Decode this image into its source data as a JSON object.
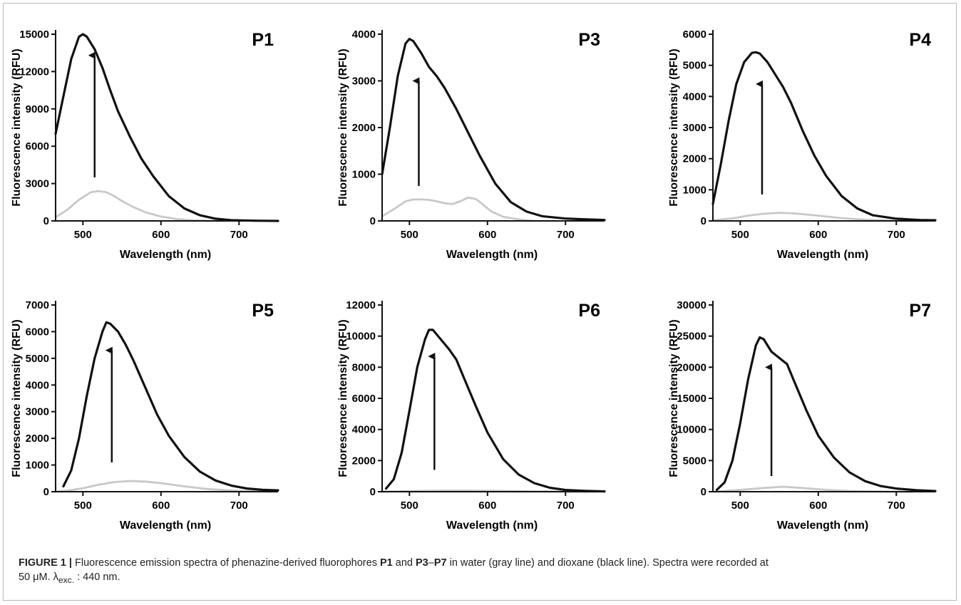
{
  "chart_data": [
    {
      "type": "line",
      "title": "P1",
      "xlabel": "Wavelength (nm)",
      "ylabel": "Fluorescence intensity (RFU)",
      "xlim": [
        465,
        750
      ],
      "ylim": [
        0,
        15000
      ],
      "xticks": [
        500,
        600,
        700
      ],
      "yticks": [
        0,
        3000,
        6000,
        9000,
        12000,
        15000
      ],
      "series": [
        {
          "color": "#111111",
          "x": [
            465,
            475,
            485,
            495,
            500,
            505,
            515,
            525,
            535,
            545,
            560,
            575,
            590,
            610,
            630,
            650,
            670,
            690,
            720,
            750
          ],
          "y": [
            7000,
            10000,
            13000,
            14800,
            15000,
            14800,
            13800,
            12300,
            10500,
            8800,
            6800,
            5000,
            3600,
            2000,
            1000,
            450,
            180,
            60,
            20,
            0
          ]
        },
        {
          "color": "#c8c8c8",
          "x": [
            465,
            480,
            495,
            510,
            520,
            530,
            540,
            550,
            565,
            580,
            600,
            620,
            640,
            660,
            680
          ],
          "y": [
            300,
            900,
            1700,
            2300,
            2400,
            2300,
            2000,
            1600,
            1100,
            700,
            350,
            150,
            60,
            20,
            0
          ]
        }
      ],
      "arrow": {
        "x": 515,
        "y_from": 3500,
        "y_to": 13300
      }
    },
    {
      "type": "line",
      "title": "P3",
      "xlabel": "Wavelength (nm)",
      "ylabel": "Fluorescence intensity (RFU)",
      "xlim": [
        465,
        750
      ],
      "ylim": [
        0,
        4000
      ],
      "xticks": [
        500,
        600,
        700
      ],
      "yticks": [
        0,
        1000,
        2000,
        3000,
        4000
      ],
      "series": [
        {
          "color": "#111111",
          "x": [
            465,
            475,
            485,
            495,
            500,
            505,
            515,
            525,
            535,
            545,
            560,
            575,
            590,
            610,
            630,
            650,
            670,
            700,
            730,
            750
          ],
          "y": [
            1000,
            2000,
            3100,
            3800,
            3900,
            3850,
            3600,
            3300,
            3100,
            2850,
            2400,
            1900,
            1400,
            800,
            400,
            200,
            100,
            50,
            30,
            20
          ]
        },
        {
          "color": "#c8c8c8",
          "x": [
            465,
            480,
            495,
            505,
            515,
            525,
            535,
            545,
            555,
            565,
            575,
            585,
            595,
            605,
            620,
            640,
            660
          ],
          "y": [
            100,
            250,
            420,
            460,
            460,
            450,
            420,
            380,
            360,
            420,
            500,
            470,
            340,
            200,
            90,
            30,
            0
          ]
        }
      ],
      "arrow": {
        "x": 512,
        "y_from": 750,
        "y_to": 3000
      }
    },
    {
      "type": "line",
      "title": "P4",
      "xlabel": "Wavelength (nm)",
      "ylabel": "Fluorescence intensity (RFU)",
      "xlim": [
        465,
        750
      ],
      "ylim": [
        0,
        6000
      ],
      "xticks": [
        500,
        600,
        700
      ],
      "yticks": [
        0,
        1000,
        2000,
        3000,
        4000,
        5000,
        6000
      ],
      "series": [
        {
          "color": "#111111",
          "x": [
            465,
            475,
            485,
            495,
            505,
            515,
            520,
            525,
            535,
            545,
            555,
            565,
            580,
            595,
            610,
            630,
            650,
            670,
            700,
            730,
            750
          ],
          "y": [
            550,
            1800,
            3200,
            4400,
            5100,
            5400,
            5420,
            5380,
            5100,
            4700,
            4300,
            3800,
            2900,
            2100,
            1450,
            800,
            400,
            180,
            70,
            30,
            20
          ]
        },
        {
          "color": "#c8c8c8",
          "x": [
            465,
            490,
            510,
            530,
            550,
            570,
            600,
            630,
            660,
            700,
            740
          ],
          "y": [
            20,
            80,
            170,
            230,
            260,
            240,
            170,
            90,
            40,
            10,
            0
          ]
        }
      ],
      "arrow": {
        "x": 528,
        "y_from": 850,
        "y_to": 4400
      }
    },
    {
      "type": "line",
      "title": "P5",
      "xlabel": "Wavelength (nm)",
      "ylabel": "Fluorescence intensity (RFU)",
      "xlim": [
        465,
        750
      ],
      "ylim": [
        0,
        7000
      ],
      "xticks": [
        500,
        600,
        700
      ],
      "yticks": [
        0,
        1000,
        2000,
        3000,
        4000,
        5000,
        6000,
        7000
      ],
      "series": [
        {
          "color": "#111111",
          "x": [
            475,
            485,
            495,
            505,
            515,
            525,
            530,
            535,
            545,
            555,
            565,
            580,
            595,
            610,
            630,
            650,
            670,
            690,
            710,
            730,
            750
          ],
          "y": [
            200,
            800,
            2000,
            3600,
            5000,
            6000,
            6350,
            6300,
            6000,
            5500,
            4900,
            3900,
            2900,
            2100,
            1300,
            750,
            420,
            230,
            120,
            70,
            50
          ]
        },
        {
          "color": "#c8c8c8",
          "x": [
            465,
            480,
            500,
            520,
            540,
            560,
            580,
            600,
            630,
            660,
            700,
            740
          ],
          "y": [
            0,
            40,
            130,
            260,
            360,
            400,
            380,
            320,
            200,
            100,
            30,
            0
          ]
        }
      ],
      "arrow": {
        "x": 537,
        "y_from": 1100,
        "y_to": 5300
      }
    },
    {
      "type": "line",
      "title": "P6",
      "xlabel": "Wavelength (nm)",
      "ylabel": "Fluorescence intensity (RFU)",
      "xlim": [
        465,
        750
      ],
      "ylim": [
        0,
        12000
      ],
      "xticks": [
        500,
        600,
        700
      ],
      "yticks": [
        0,
        2000,
        4000,
        6000,
        8000,
        10000,
        12000
      ],
      "series": [
        {
          "color": "#111111",
          "x": [
            470,
            480,
            490,
            500,
            510,
            520,
            525,
            530,
            540,
            550,
            560,
            570,
            585,
            600,
            620,
            640,
            660,
            680,
            700,
            725,
            750
          ],
          "y": [
            200,
            800,
            2500,
            5200,
            8000,
            9800,
            10400,
            10400,
            9800,
            9200,
            8500,
            7300,
            5500,
            3800,
            2100,
            1100,
            550,
            250,
            110,
            50,
            20
          ]
        },
        {
          "color": "#c8c8c8",
          "x": [
            465,
            500,
            540,
            580,
            620,
            660,
            700,
            740
          ],
          "y": [
            0,
            40,
            70,
            70,
            50,
            25,
            10,
            0
          ]
        }
      ],
      "arrow": {
        "x": 532,
        "y_from": 1400,
        "y_to": 8700
      }
    },
    {
      "type": "line",
      "title": "P7",
      "xlabel": "Wavelength (nm)",
      "ylabel": "Fluorescence intensity (RFU)",
      "xlim": [
        465,
        750
      ],
      "ylim": [
        0,
        30000
      ],
      "xticks": [
        500,
        600,
        700
      ],
      "yticks": [
        0,
        5000,
        10000,
        15000,
        20000,
        25000,
        30000
      ],
      "series": [
        {
          "color": "#111111",
          "x": [
            470,
            480,
            490,
            500,
            510,
            520,
            525,
            530,
            540,
            550,
            560,
            570,
            585,
            600,
            620,
            640,
            660,
            680,
            700,
            725,
            750
          ],
          "y": [
            300,
            1500,
            5000,
            11000,
            18000,
            23500,
            24800,
            24500,
            22500,
            21500,
            20500,
            17500,
            13000,
            9000,
            5500,
            3100,
            1700,
            900,
            500,
            250,
            100
          ]
        },
        {
          "color": "#c8c8c8",
          "x": [
            465,
            500,
            530,
            555,
            580,
            610,
            640,
            680,
            720
          ],
          "y": [
            0,
            300,
            600,
            800,
            600,
            300,
            120,
            20,
            0
          ]
        }
      ],
      "arrow": {
        "x": 540,
        "y_from": 2500,
        "y_to": 20000
      }
    }
  ],
  "caption": {
    "label": "FIGURE 1 |",
    "t1": " Fluorescence emission spectra of phenazine-derived fluorophores ",
    "b1": "P1",
    "t2": " and ",
    "b2": "P3",
    "t3": "–",
    "b3": "P7",
    "t4": " in water (gray line) and dioxane (black line). Spectra were recorded at",
    "t5": "50 μM. λ",
    "sub": "exc.",
    "t6": " : 440 nm."
  }
}
